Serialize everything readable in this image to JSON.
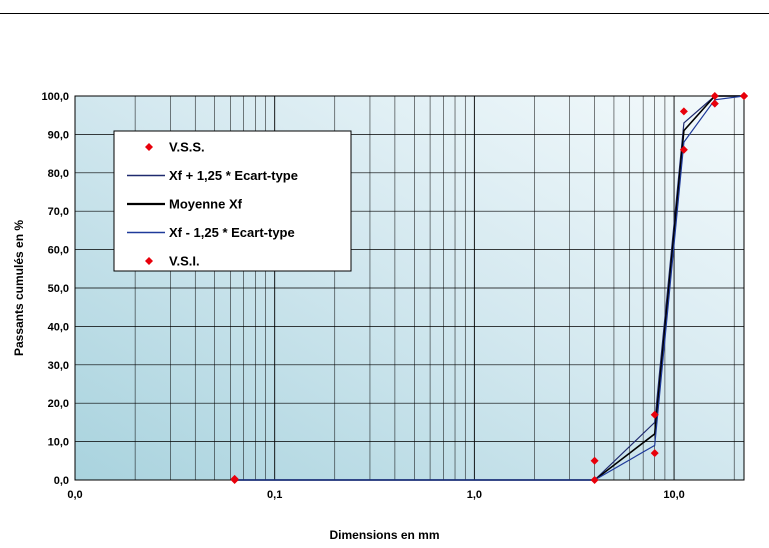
{
  "chart_data": {
    "type": "line",
    "xscale": "log",
    "xlim": [
      0.01,
      22.4
    ],
    "ylim": [
      0,
      100
    ],
    "xticks": [
      {
        "value": 0.01,
        "label": "0,0"
      },
      {
        "value": 0.1,
        "label": "0,1"
      },
      {
        "value": 1,
        "label": "1,0"
      },
      {
        "value": 10,
        "label": "10,0"
      }
    ],
    "yticks": [
      {
        "value": 0,
        "label": "0,0"
      },
      {
        "value": 10,
        "label": "10,0"
      },
      {
        "value": 20,
        "label": "20,0"
      },
      {
        "value": 30,
        "label": "30,0"
      },
      {
        "value": 40,
        "label": "40,0"
      },
      {
        "value": 50,
        "label": "50,0"
      },
      {
        "value": 60,
        "label": "60,0"
      },
      {
        "value": 70,
        "label": "70,0"
      },
      {
        "value": 80,
        "label": "80,0"
      },
      {
        "value": 90,
        "label": "90,0"
      },
      {
        "value": 100,
        "label": "100,0"
      }
    ],
    "xlabel": "Dimensions en mm",
    "ylabel": "Passants cumulés en %",
    "grid": true,
    "legend_position": "top-left",
    "series": [
      {
        "name": "V.S.S.",
        "kind": "points",
        "color": "#e8000b",
        "x": [
          0.063,
          4,
          8,
          11.2,
          16,
          22.4
        ],
        "y": [
          0.3,
          5,
          17,
          96,
          100,
          100
        ]
      },
      {
        "name": "Xf + 1,25 * Ecart-type",
        "kind": "line",
        "color": "#1f2a6e",
        "x": [
          0.063,
          4,
          8,
          11.2,
          16,
          22.4
        ],
        "y": [
          0,
          0,
          15,
          93,
          100,
          100
        ]
      },
      {
        "name": "Moyenne Xf",
        "kind": "line",
        "color": "#000000",
        "x": [
          0.063,
          4,
          8,
          11.2,
          16,
          22.4
        ],
        "y": [
          0,
          0,
          12,
          91,
          100,
          100
        ]
      },
      {
        "name": "Xf - 1,25 * Ecart-type",
        "kind": "line",
        "color": "#1f3a9a",
        "x": [
          0.063,
          4,
          8,
          11.2,
          16,
          22.4
        ],
        "y": [
          0,
          0,
          9,
          88,
          99,
          100
        ]
      },
      {
        "name": "V.S.I.",
        "kind": "points",
        "color": "#e8000b",
        "x": [
          0.063,
          4,
          8,
          11.2,
          16,
          22.4
        ],
        "y": [
          0,
          0,
          7,
          86,
          98,
          100
        ]
      }
    ]
  }
}
